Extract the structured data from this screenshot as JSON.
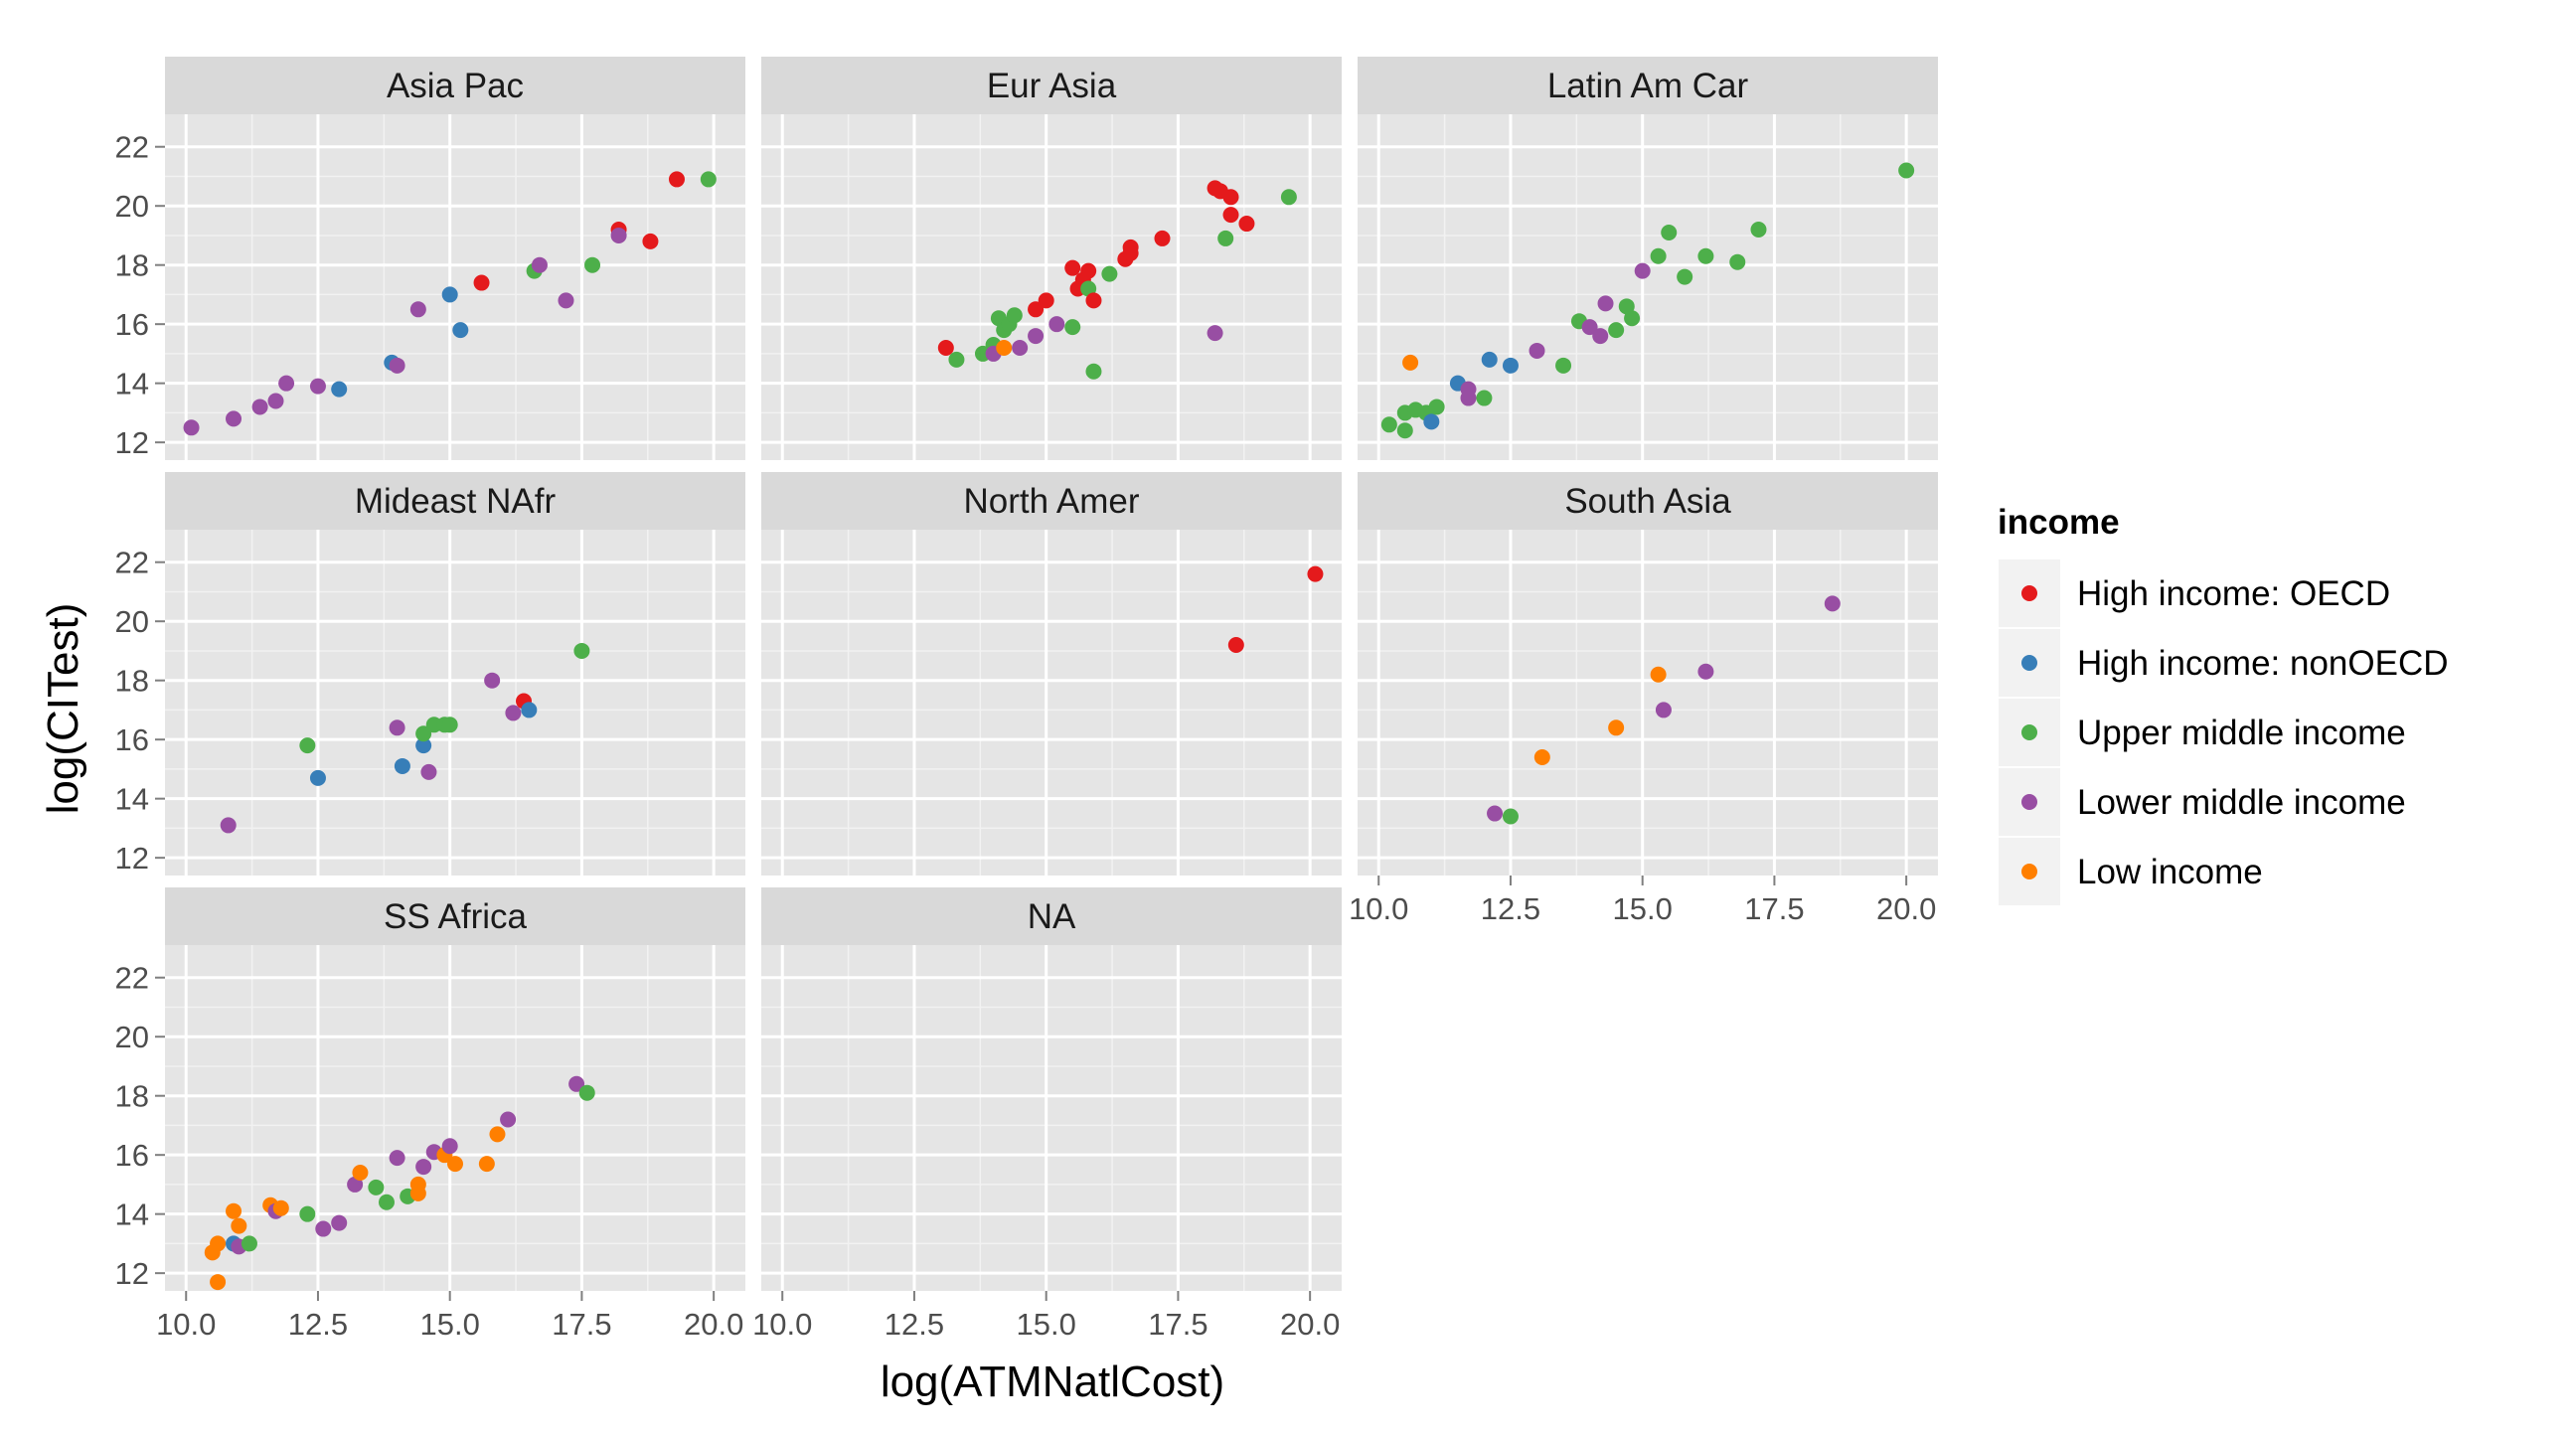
{
  "chart_data": {
    "type": "scatter",
    "title": "",
    "xlabel": "log(ATMNatlCost)",
    "ylabel": "log(CITest)",
    "xlim": [
      9.6,
      20.6
    ],
    "ylim": [
      11.4,
      23.1
    ],
    "x_ticks": [
      10.0,
      12.5,
      15.0,
      17.5,
      20.0
    ],
    "x_tick_labels": [
      "10.0",
      "12.5",
      "15.0",
      "17.5",
      "20.0"
    ],
    "y_ticks": [
      12,
      14,
      16,
      18,
      20,
      22
    ],
    "y_tick_labels": [
      "12",
      "14",
      "16",
      "18",
      "20",
      "22"
    ],
    "grid": true,
    "facet_layout": {
      "rows": 3,
      "cols": 3
    },
    "legend": {
      "title": "income",
      "placement": "right",
      "entries": [
        {
          "key": "oecd",
          "label": "High income: OECD",
          "color": "#E41A1C"
        },
        {
          "key": "nonoecd",
          "label": "High income: nonOECD",
          "color": "#377EB8"
        },
        {
          "key": "upper",
          "label": "Upper middle income",
          "color": "#4DAF4A"
        },
        {
          "key": "lower",
          "label": "Lower middle income",
          "color": "#984EA3"
        },
        {
          "key": "low",
          "label": "Low income",
          "color": "#FF7F00"
        }
      ]
    },
    "panels": [
      {
        "label": "Asia Pac",
        "points": [
          {
            "x": 10.1,
            "y": 12.5,
            "income": "lower"
          },
          {
            "x": 10.9,
            "y": 12.8,
            "income": "lower"
          },
          {
            "x": 11.4,
            "y": 13.2,
            "income": "lower"
          },
          {
            "x": 11.7,
            "y": 13.4,
            "income": "lower"
          },
          {
            "x": 11.9,
            "y": 14.0,
            "income": "lower"
          },
          {
            "x": 12.5,
            "y": 13.9,
            "income": "lower"
          },
          {
            "x": 12.9,
            "y": 13.8,
            "income": "nonoecd"
          },
          {
            "x": 13.9,
            "y": 14.7,
            "income": "nonoecd"
          },
          {
            "x": 14.0,
            "y": 14.6,
            "income": "lower"
          },
          {
            "x": 14.4,
            "y": 16.5,
            "income": "lower"
          },
          {
            "x": 15.0,
            "y": 17.0,
            "income": "nonoecd"
          },
          {
            "x": 15.2,
            "y": 15.8,
            "income": "nonoecd"
          },
          {
            "x": 15.6,
            "y": 17.4,
            "income": "oecd"
          },
          {
            "x": 16.6,
            "y": 17.8,
            "income": "upper"
          },
          {
            "x": 16.7,
            "y": 18.0,
            "income": "lower"
          },
          {
            "x": 17.2,
            "y": 16.8,
            "income": "lower"
          },
          {
            "x": 17.7,
            "y": 18.0,
            "income": "upper"
          },
          {
            "x": 18.2,
            "y": 19.2,
            "income": "oecd"
          },
          {
            "x": 18.2,
            "y": 19.0,
            "income": "lower"
          },
          {
            "x": 18.8,
            "y": 18.8,
            "income": "oecd"
          },
          {
            "x": 19.3,
            "y": 20.9,
            "income": "oecd"
          },
          {
            "x": 19.9,
            "y": 20.9,
            "income": "upper"
          }
        ]
      },
      {
        "label": "Eur Asia",
        "points": [
          {
            "x": 13.1,
            "y": 15.2,
            "income": "oecd"
          },
          {
            "x": 13.3,
            "y": 14.8,
            "income": "upper"
          },
          {
            "x": 13.8,
            "y": 15.0,
            "income": "upper"
          },
          {
            "x": 14.0,
            "y": 15.3,
            "income": "upper"
          },
          {
            "x": 14.0,
            "y": 15.0,
            "income": "lower"
          },
          {
            "x": 14.1,
            "y": 16.2,
            "income": "upper"
          },
          {
            "x": 14.2,
            "y": 15.2,
            "income": "low"
          },
          {
            "x": 14.2,
            "y": 15.8,
            "income": "upper"
          },
          {
            "x": 14.3,
            "y": 16.0,
            "income": "upper"
          },
          {
            "x": 14.4,
            "y": 16.3,
            "income": "upper"
          },
          {
            "x": 14.5,
            "y": 15.2,
            "income": "lower"
          },
          {
            "x": 14.8,
            "y": 15.6,
            "income": "lower"
          },
          {
            "x": 14.8,
            "y": 16.5,
            "income": "oecd"
          },
          {
            "x": 15.0,
            "y": 16.8,
            "income": "oecd"
          },
          {
            "x": 15.2,
            "y": 16.0,
            "income": "lower"
          },
          {
            "x": 15.5,
            "y": 17.9,
            "income": "oecd"
          },
          {
            "x": 15.5,
            "y": 15.9,
            "income": "upper"
          },
          {
            "x": 15.6,
            "y": 17.2,
            "income": "oecd"
          },
          {
            "x": 15.7,
            "y": 17.5,
            "income": "oecd"
          },
          {
            "x": 15.8,
            "y": 17.8,
            "income": "oecd"
          },
          {
            "x": 15.8,
            "y": 17.2,
            "income": "upper"
          },
          {
            "x": 15.9,
            "y": 16.8,
            "income": "oecd"
          },
          {
            "x": 15.9,
            "y": 14.4,
            "income": "upper"
          },
          {
            "x": 16.2,
            "y": 17.7,
            "income": "upper"
          },
          {
            "x": 16.5,
            "y": 18.2,
            "income": "oecd"
          },
          {
            "x": 16.6,
            "y": 18.6,
            "income": "oecd"
          },
          {
            "x": 16.6,
            "y": 18.4,
            "income": "oecd"
          },
          {
            "x": 17.2,
            "y": 18.9,
            "income": "oecd"
          },
          {
            "x": 18.2,
            "y": 20.6,
            "income": "oecd"
          },
          {
            "x": 18.2,
            "y": 15.7,
            "income": "lower"
          },
          {
            "x": 18.3,
            "y": 20.5,
            "income": "oecd"
          },
          {
            "x": 18.4,
            "y": 18.9,
            "income": "upper"
          },
          {
            "x": 18.5,
            "y": 19.7,
            "income": "oecd"
          },
          {
            "x": 18.5,
            "y": 20.3,
            "income": "oecd"
          },
          {
            "x": 18.8,
            "y": 19.4,
            "income": "oecd"
          },
          {
            "x": 19.6,
            "y": 20.3,
            "income": "upper"
          }
        ]
      },
      {
        "label": "Latin Am Car",
        "points": [
          {
            "x": 10.2,
            "y": 12.6,
            "income": "upper"
          },
          {
            "x": 10.5,
            "y": 12.4,
            "income": "upper"
          },
          {
            "x": 10.5,
            "y": 13.0,
            "income": "upper"
          },
          {
            "x": 10.7,
            "y": 13.1,
            "income": "upper"
          },
          {
            "x": 10.9,
            "y": 13.0,
            "income": "upper"
          },
          {
            "x": 11.0,
            "y": 12.7,
            "income": "nonoecd"
          },
          {
            "x": 11.1,
            "y": 13.2,
            "income": "upper"
          },
          {
            "x": 10.6,
            "y": 14.7,
            "income": "low"
          },
          {
            "x": 11.5,
            "y": 14.0,
            "income": "nonoecd"
          },
          {
            "x": 11.7,
            "y": 13.8,
            "income": "lower"
          },
          {
            "x": 11.7,
            "y": 13.5,
            "income": "lower"
          },
          {
            "x": 12.0,
            "y": 13.5,
            "income": "upper"
          },
          {
            "x": 12.1,
            "y": 14.8,
            "income": "nonoecd"
          },
          {
            "x": 12.5,
            "y": 14.6,
            "income": "nonoecd"
          },
          {
            "x": 13.0,
            "y": 15.1,
            "income": "lower"
          },
          {
            "x": 13.5,
            "y": 14.6,
            "income": "upper"
          },
          {
            "x": 13.8,
            "y": 16.1,
            "income": "upper"
          },
          {
            "x": 14.0,
            "y": 15.9,
            "income": "lower"
          },
          {
            "x": 14.2,
            "y": 15.6,
            "income": "lower"
          },
          {
            "x": 14.3,
            "y": 16.7,
            "income": "lower"
          },
          {
            "x": 14.5,
            "y": 15.8,
            "income": "upper"
          },
          {
            "x": 14.7,
            "y": 16.6,
            "income": "upper"
          },
          {
            "x": 14.8,
            "y": 16.2,
            "income": "upper"
          },
          {
            "x": 15.0,
            "y": 17.8,
            "income": "lower"
          },
          {
            "x": 15.3,
            "y": 18.3,
            "income": "upper"
          },
          {
            "x": 15.5,
            "y": 19.1,
            "income": "upper"
          },
          {
            "x": 15.8,
            "y": 17.6,
            "income": "upper"
          },
          {
            "x": 16.2,
            "y": 18.3,
            "income": "upper"
          },
          {
            "x": 16.8,
            "y": 18.1,
            "income": "upper"
          },
          {
            "x": 17.2,
            "y": 19.2,
            "income": "upper"
          },
          {
            "x": 20.0,
            "y": 21.2,
            "income": "upper"
          }
        ]
      },
      {
        "label": "Mideast NAfr",
        "points": [
          {
            "x": 10.8,
            "y": 13.1,
            "income": "lower"
          },
          {
            "x": 12.3,
            "y": 15.8,
            "income": "upper"
          },
          {
            "x": 12.5,
            "y": 14.7,
            "income": "nonoecd"
          },
          {
            "x": 14.0,
            "y": 16.4,
            "income": "lower"
          },
          {
            "x": 14.1,
            "y": 15.1,
            "income": "nonoecd"
          },
          {
            "x": 14.5,
            "y": 15.8,
            "income": "nonoecd"
          },
          {
            "x": 14.5,
            "y": 16.2,
            "income": "upper"
          },
          {
            "x": 14.6,
            "y": 14.9,
            "income": "lower"
          },
          {
            "x": 14.7,
            "y": 16.5,
            "income": "upper"
          },
          {
            "x": 14.9,
            "y": 16.5,
            "income": "upper"
          },
          {
            "x": 15.0,
            "y": 16.5,
            "income": "upper"
          },
          {
            "x": 15.8,
            "y": 18.0,
            "income": "lower"
          },
          {
            "x": 16.2,
            "y": 16.9,
            "income": "lower"
          },
          {
            "x": 16.4,
            "y": 17.3,
            "income": "oecd"
          },
          {
            "x": 16.5,
            "y": 17.0,
            "income": "nonoecd"
          },
          {
            "x": 17.5,
            "y": 19.0,
            "income": "upper"
          }
        ]
      },
      {
        "label": "North Amer",
        "points": [
          {
            "x": 18.6,
            "y": 19.2,
            "income": "oecd"
          },
          {
            "x": 20.1,
            "y": 21.6,
            "income": "oecd"
          }
        ]
      },
      {
        "label": "South Asia",
        "points": [
          {
            "x": 12.2,
            "y": 13.5,
            "income": "lower"
          },
          {
            "x": 12.5,
            "y": 13.4,
            "income": "upper"
          },
          {
            "x": 13.1,
            "y": 15.4,
            "income": "low"
          },
          {
            "x": 14.5,
            "y": 16.4,
            "income": "low"
          },
          {
            "x": 15.3,
            "y": 18.2,
            "income": "low"
          },
          {
            "x": 15.4,
            "y": 17.0,
            "income": "lower"
          },
          {
            "x": 16.2,
            "y": 18.3,
            "income": "lower"
          },
          {
            "x": 18.6,
            "y": 20.6,
            "income": "lower"
          }
        ]
      },
      {
        "label": "SS Africa",
        "points": [
          {
            "x": 10.5,
            "y": 12.7,
            "income": "low"
          },
          {
            "x": 10.6,
            "y": 13.0,
            "income": "low"
          },
          {
            "x": 10.6,
            "y": 11.7,
            "income": "low"
          },
          {
            "x": 10.9,
            "y": 13.0,
            "income": "nonoecd"
          },
          {
            "x": 10.9,
            "y": 14.1,
            "income": "low"
          },
          {
            "x": 11.0,
            "y": 12.9,
            "income": "lower"
          },
          {
            "x": 11.0,
            "y": 13.6,
            "income": "low"
          },
          {
            "x": 11.2,
            "y": 13.0,
            "income": "upper"
          },
          {
            "x": 11.6,
            "y": 14.3,
            "income": "low"
          },
          {
            "x": 11.7,
            "y": 14.1,
            "income": "lower"
          },
          {
            "x": 11.8,
            "y": 14.2,
            "income": "low"
          },
          {
            "x": 12.3,
            "y": 14.0,
            "income": "upper"
          },
          {
            "x": 12.6,
            "y": 13.5,
            "income": "lower"
          },
          {
            "x": 12.9,
            "y": 13.7,
            "income": "lower"
          },
          {
            "x": 13.2,
            "y": 15.0,
            "income": "lower"
          },
          {
            "x": 13.3,
            "y": 15.4,
            "income": "low"
          },
          {
            "x": 13.6,
            "y": 14.9,
            "income": "upper"
          },
          {
            "x": 13.8,
            "y": 14.4,
            "income": "upper"
          },
          {
            "x": 14.0,
            "y": 15.9,
            "income": "lower"
          },
          {
            "x": 14.2,
            "y": 14.6,
            "income": "upper"
          },
          {
            "x": 14.4,
            "y": 14.7,
            "income": "low"
          },
          {
            "x": 14.4,
            "y": 15.0,
            "income": "low"
          },
          {
            "x": 14.5,
            "y": 15.6,
            "income": "lower"
          },
          {
            "x": 14.7,
            "y": 16.1,
            "income": "lower"
          },
          {
            "x": 14.9,
            "y": 16.0,
            "income": "low"
          },
          {
            "x": 15.0,
            "y": 16.3,
            "income": "lower"
          },
          {
            "x": 15.1,
            "y": 15.7,
            "income": "low"
          },
          {
            "x": 15.7,
            "y": 15.7,
            "income": "low"
          },
          {
            "x": 15.9,
            "y": 16.7,
            "income": "low"
          },
          {
            "x": 16.1,
            "y": 17.2,
            "income": "lower"
          },
          {
            "x": 17.4,
            "y": 18.4,
            "income": "lower"
          },
          {
            "x": 17.6,
            "y": 18.1,
            "income": "upper"
          }
        ]
      },
      {
        "label": "NA",
        "points": []
      }
    ]
  }
}
